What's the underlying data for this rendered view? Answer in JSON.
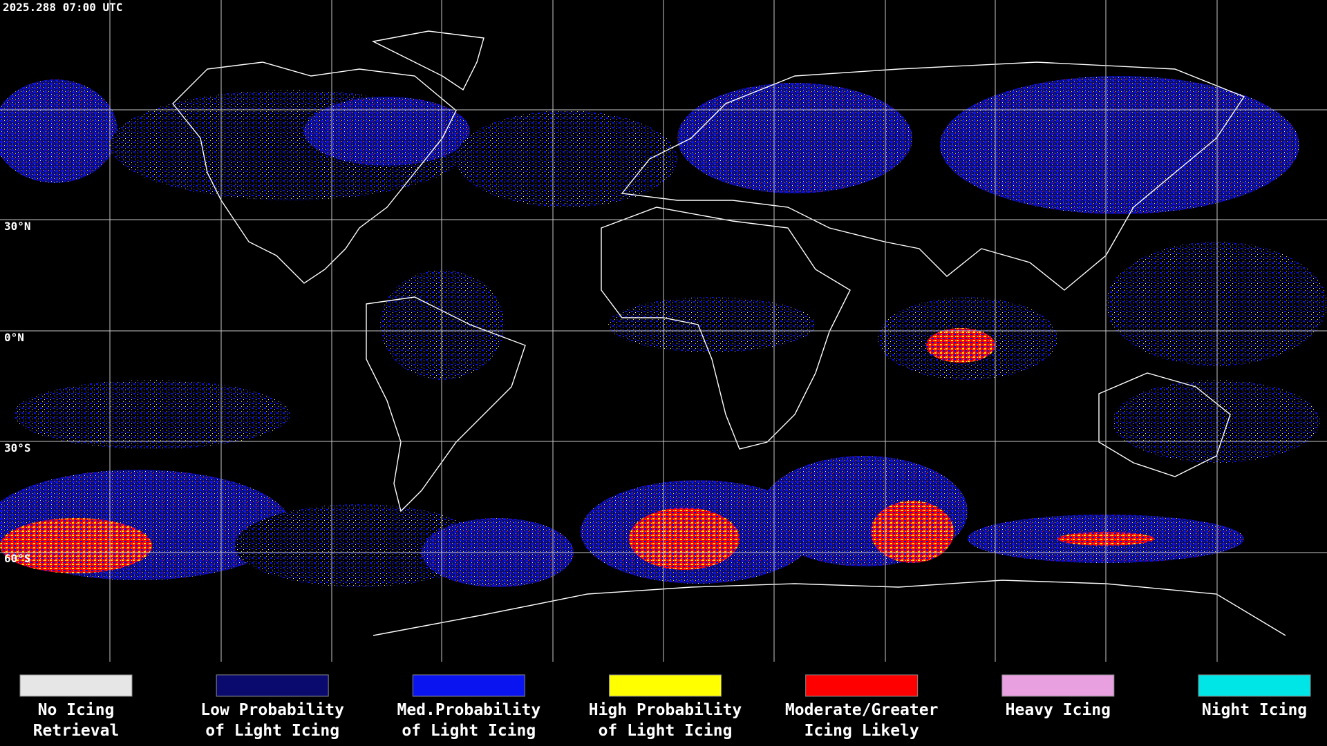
{
  "timestamp": "2025.288 07:00 UTC",
  "latitude_labels": [
    "30°N",
    "0°N",
    "30°S",
    "60°S"
  ],
  "legend": [
    {
      "lines": [
        "No Icing",
        "Retrieval"
      ],
      "color": "#e6e6e6"
    },
    {
      "lines": [
        "Low Probability",
        "of Light Icing"
      ],
      "color": "#0a0a6e"
    },
    {
      "lines": [
        "Med.Probability",
        "of Light Icing"
      ],
      "color": "#0a14f0"
    },
    {
      "lines": [
        "High Probability",
        "of Light Icing"
      ],
      "color": "#ffff00"
    },
    {
      "lines": [
        "Moderate/Greater",
        "Icing Likely"
      ],
      "color": "#ff0000"
    },
    {
      "lines": [
        "Heavy Icing"
      ],
      "color": "#e8a0e0"
    },
    {
      "lines": [
        "Night Icing"
      ],
      "color": "#00e6e6"
    }
  ]
}
